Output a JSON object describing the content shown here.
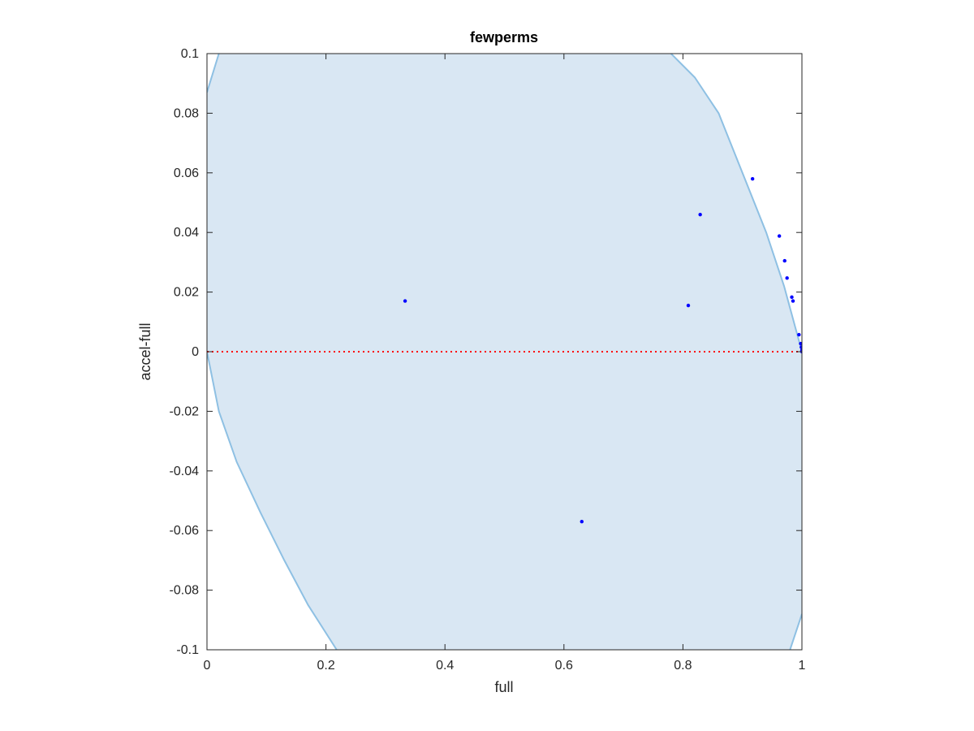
{
  "chart_data": {
    "type": "scatter",
    "title": "fewperms",
    "xlabel": "full",
    "ylabel": "accel-full",
    "xlim": [
      0,
      1
    ],
    "ylim": [
      -0.1,
      0.1
    ],
    "x_ticks": [
      "0",
      "0.2",
      "0.4",
      "0.6",
      "0.8",
      "1"
    ],
    "y_ticks": [
      "-0.1",
      "-0.08",
      "-0.06",
      "-0.04",
      "-0.02",
      "0",
      "0.02",
      "0.04",
      "0.06",
      "0.08",
      "0.1"
    ],
    "grid": false,
    "reference_line": {
      "y": 0,
      "style": "dotted",
      "color": "#ff0000"
    },
    "region": {
      "description": "shaded band bounded by two curves",
      "fill_color": "#d9e7f3",
      "edge_color": "#8ec0e3",
      "left_boundary": [
        [
          0.0,
          0.087
        ],
        [
          0.02,
          0.1
        ]
      ],
      "lower_left_boundary": [
        [
          0.0,
          0.0
        ],
        [
          0.02,
          -0.02
        ],
        [
          0.05,
          -0.037
        ],
        [
          0.09,
          -0.054
        ],
        [
          0.13,
          -0.07
        ],
        [
          0.17,
          -0.085
        ],
        [
          0.218,
          -0.1
        ]
      ],
      "upper_right_boundary": [
        [
          0.78,
          0.1
        ],
        [
          0.82,
          0.092
        ],
        [
          0.86,
          0.08
        ],
        [
          0.9,
          0.06
        ],
        [
          0.94,
          0.04
        ],
        [
          0.97,
          0.022
        ],
        [
          1.0,
          0.0
        ]
      ],
      "lower_right_boundary": [
        [
          0.98,
          -0.1
        ],
        [
          1.0,
          -0.088
        ]
      ]
    },
    "series": [
      {
        "color": "#0000ff",
        "points": [
          [
            0.333,
            0.017
          ],
          [
            0.63,
            -0.057
          ],
          [
            0.809,
            0.0155
          ],
          [
            0.829,
            0.046
          ],
          [
            0.917,
            0.058
          ],
          [
            0.962,
            0.0388
          ],
          [
            0.971,
            0.0305
          ],
          [
            0.975,
            0.0247
          ],
          [
            0.983,
            0.0183
          ],
          [
            0.985,
            0.017
          ],
          [
            0.995,
            0.0057
          ],
          [
            0.998,
            0.0027
          ],
          [
            0.999,
            0.0015
          ],
          [
            1.0,
            0.0005
          ],
          [
            1.0,
            0.0
          ]
        ]
      }
    ]
  }
}
